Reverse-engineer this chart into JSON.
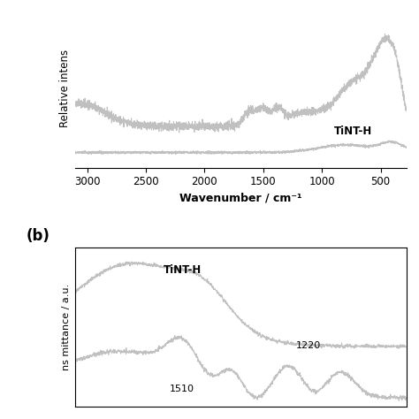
{
  "panel_a": {
    "ylabel": "Relative intens",
    "xlabel": "Wavenumber / cm⁻¹",
    "xmin": 280,
    "xmax": 3100,
    "label_tint_h": "TiNT-H",
    "line_color": "#c0c0c0",
    "xticks": [
      3000,
      2500,
      2000,
      1500,
      1000,
      500
    ],
    "background": "#ffffff"
  },
  "panel_b": {
    "ylabel": "ns mittance / a.u.",
    "panel_label": "(b)",
    "label_tint_h": "TiNT-H",
    "label_1220": "1220",
    "label_1510": "1510",
    "line_color": "#c0c0c0",
    "background": "#ffffff"
  }
}
